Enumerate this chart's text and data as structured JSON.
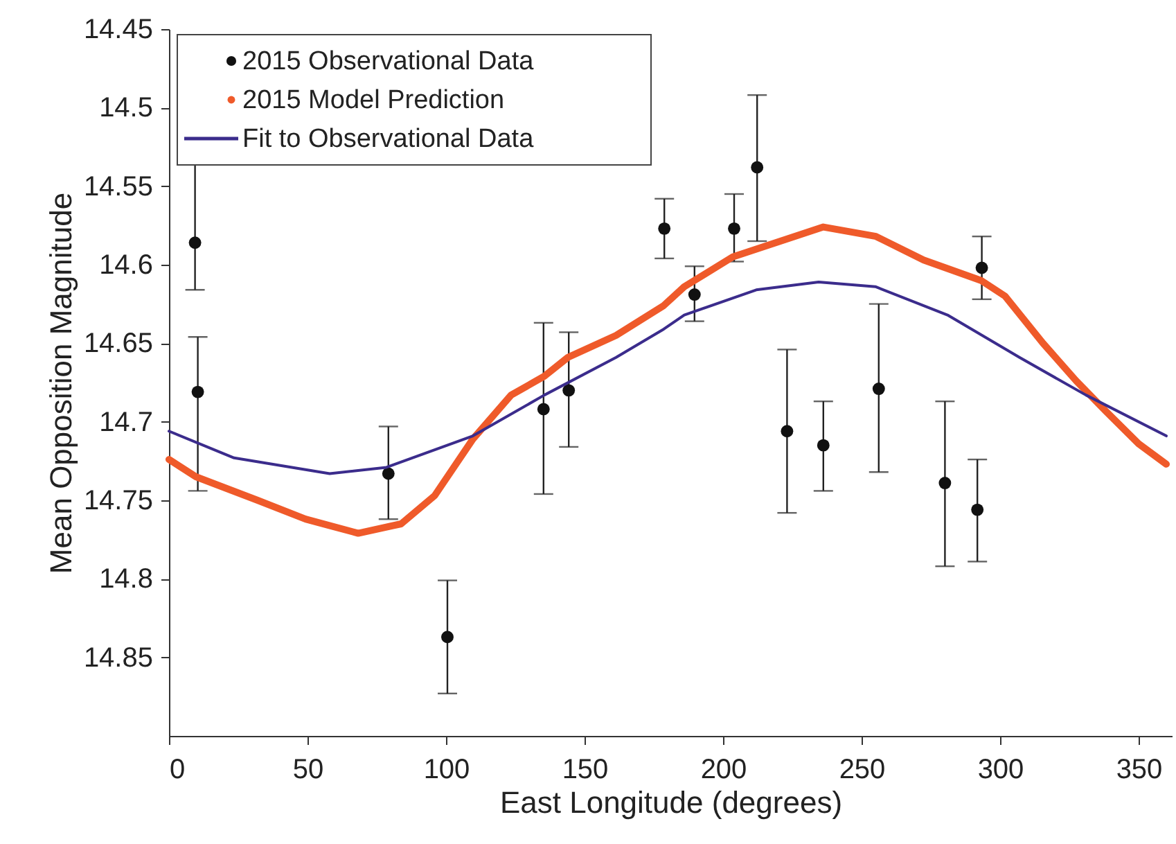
{
  "chart_data": {
    "type": "scatter",
    "xlabel": "East Longitude (degrees)",
    "ylabel": "Mean Opposition Magnitude",
    "xlim": [
      0,
      362
    ],
    "xticks": [
      0,
      50,
      100,
      150,
      200,
      250,
      300,
      350
    ],
    "ylim": [
      14.9,
      14.45
    ],
    "yticks": [
      14.45,
      {
        "value": 14.5,
        "label": "14.5"
      },
      14.55,
      {
        "value": 14.6,
        "label": "14.6"
      },
      14.65,
      {
        "value": 14.7,
        "label": "14.7"
      },
      14.75,
      {
        "value": 14.8,
        "label": "14.8"
      },
      14.85
    ],
    "grid": false,
    "legend": "top left",
    "series": [
      {
        "name": "2015 Observational Data",
        "type": "scatter",
        "color": "#111111",
        "marker": "circle",
        "x": [
          9.4,
          10.4,
          79.2,
          100.5,
          135.2,
          144.3,
          178.8,
          189.7,
          204,
          212.3,
          223.1,
          236.2,
          256.2,
          280.1,
          291.8,
          293.4
        ],
        "values": [
          14.586,
          14.681,
          14.733,
          14.837,
          14.692,
          14.68,
          14.577,
          14.619,
          14.577,
          14.538,
          14.706,
          14.715,
          14.679,
          14.739,
          14.756,
          14.602
        ],
        "errors": [
          [
            14.52,
            14.616
          ],
          [
            14.646,
            14.744
          ],
          [
            14.703,
            14.762
          ],
          [
            14.801,
            14.873
          ],
          [
            14.637,
            14.746
          ],
          [
            14.643,
            14.716
          ],
          [
            14.558,
            14.596
          ],
          [
            14.601,
            14.636
          ],
          [
            14.555,
            14.598
          ],
          [
            14.492,
            14.585
          ],
          [
            14.654,
            14.758
          ],
          [
            14.687,
            14.744
          ],
          [
            14.625,
            14.732
          ],
          [
            14.687,
            14.792
          ],
          [
            14.724,
            14.789
          ],
          [
            14.582,
            14.622
          ]
        ]
      },
      {
        "name": "2015 Model Prediction",
        "type": "line",
        "color": "#ef5a2a",
        "line_style": "solid",
        "x": [
          0,
          9.7,
          32,
          49.3,
          68.3,
          83.8,
          95.9,
          109.7,
          123.5,
          135.5,
          144,
          161.4,
          178.6,
          186,
          203.5,
          220.7,
          236.2,
          255.2,
          272.4,
          293.1,
          301.8,
          315.5,
          327.5,
          338,
          350,
          360
        ],
        "values": [
          14.724,
          14.735,
          14.75,
          14.762,
          14.771,
          14.765,
          14.747,
          14.711,
          14.683,
          14.671,
          14.659,
          14.645,
          14.626,
          14.614,
          14.595,
          14.585,
          14.576,
          14.582,
          14.597,
          14.61,
          14.62,
          14.65,
          14.674,
          14.693,
          14.714,
          14.727
        ]
      },
      {
        "name": "Fit to Observational Data",
        "type": "line",
        "color": "#3b2c8c",
        "marker": "none",
        "line_style": "solid",
        "x": [
          0,
          23.5,
          58,
          78.5,
          109.7,
          135.5,
          161.4,
          178.6,
          186,
          212,
          234.5,
          255,
          281,
          307,
          331,
          360
        ],
        "values": [
          14.706,
          14.723,
          14.733,
          14.729,
          14.709,
          14.683,
          14.659,
          14.641,
          14.632,
          14.616,
          14.611,
          14.614,
          14.632,
          14.659,
          14.683,
          14.709
        ]
      }
    ]
  }
}
